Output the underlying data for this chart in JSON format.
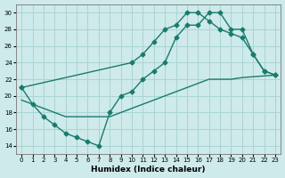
{
  "xlabel": "Humidex (Indice chaleur)",
  "bg_color": "#ceeaea",
  "grid_color": "#aad4d4",
  "line_color": "#1a7a6e",
  "xlim": [
    -0.5,
    23.5
  ],
  "ylim": [
    13,
    31
  ],
  "xticks": [
    0,
    1,
    2,
    3,
    4,
    5,
    6,
    7,
    8,
    9,
    10,
    11,
    12,
    13,
    14,
    15,
    16,
    17,
    18,
    19,
    20,
    21,
    22,
    23
  ],
  "yticks": [
    14,
    16,
    18,
    20,
    22,
    24,
    26,
    28,
    30
  ],
  "line1_x": [
    0,
    1,
    2,
    3,
    4,
    5,
    6,
    7,
    8,
    9,
    10,
    11,
    12,
    13,
    14,
    15,
    16,
    17,
    18,
    19,
    20,
    21,
    22,
    23
  ],
  "line1_y": [
    21,
    19,
    17.5,
    16.5,
    15.5,
    15,
    14.5,
    14,
    18,
    20,
    20.5,
    22,
    23,
    24,
    27,
    28.5,
    28.5,
    30,
    30,
    28,
    28,
    25,
    23,
    22.5
  ],
  "line2_x": [
    0,
    10,
    11,
    12,
    13,
    14,
    15,
    16,
    17,
    18,
    19,
    20,
    21,
    22,
    23
  ],
  "line2_y": [
    21,
    24,
    25,
    26.5,
    28,
    28.5,
    30,
    30,
    29,
    28,
    27.5,
    27,
    25,
    23,
    22.5
  ],
  "line3_x": [
    0,
    1,
    2,
    3,
    4,
    5,
    6,
    7,
    8,
    9,
    10,
    11,
    12,
    13,
    14,
    15,
    16,
    17,
    18,
    19,
    20,
    21,
    22,
    23
  ],
  "line3_y": [
    19.5,
    19,
    18.5,
    18,
    17.5,
    17.5,
    17.5,
    17.5,
    17.5,
    18,
    18.5,
    19,
    19.5,
    20,
    20.5,
    21,
    21.5,
    22,
    22,
    22,
    22.2,
    22.3,
    22.4,
    22.5
  ],
  "marker": "D",
  "markersize": 2.5,
  "linewidth": 1.0
}
